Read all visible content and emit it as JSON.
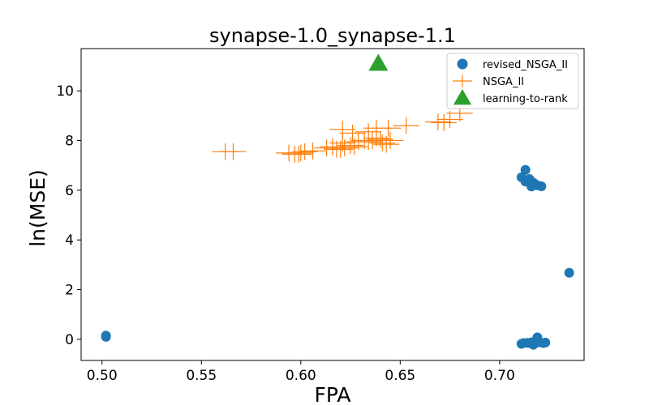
{
  "chart_data": {
    "type": "scatter",
    "title": "synapse-1.0_synapse-1.1",
    "xlabel": "FPA",
    "ylabel": "ln(MSE)",
    "xlim": [
      0.4895,
      0.7425
    ],
    "ylim": [
      -0.85,
      11.7
    ],
    "xticks": [
      "0.50",
      "0.55",
      "0.60",
      "0.65",
      "0.70"
    ],
    "yticks": [
      "0",
      "2",
      "4",
      "6",
      "8",
      "10"
    ],
    "grid": false,
    "legend_position": "top-right",
    "series": [
      {
        "name": "revised_NSGA_II",
        "marker": "circle",
        "color": "#1f77b4",
        "points": [
          [
            0.502,
            0.15
          ],
          [
            0.502,
            0.1
          ],
          [
            0.735,
            2.68
          ],
          [
            0.711,
            6.52
          ],
          [
            0.713,
            6.82
          ],
          [
            0.713,
            6.35
          ],
          [
            0.715,
            6.45
          ],
          [
            0.716,
            6.15
          ],
          [
            0.717,
            6.3
          ],
          [
            0.718,
            6.22
          ],
          [
            0.719,
            6.2
          ],
          [
            0.721,
            6.16
          ],
          [
            0.711,
            -0.18
          ],
          [
            0.712,
            -0.15
          ],
          [
            0.714,
            -0.14
          ],
          [
            0.715,
            -0.15
          ],
          [
            0.716,
            -0.12
          ],
          [
            0.717,
            -0.22
          ],
          [
            0.718,
            -0.1
          ],
          [
            0.719,
            0.08
          ],
          [
            0.72,
            -0.12
          ],
          [
            0.722,
            -0.15
          ],
          [
            0.723,
            -0.13
          ]
        ]
      },
      {
        "name": "NSGA_II",
        "marker": "plus",
        "color": "#ff7f0e",
        "points": [
          [
            0.562,
            7.55
          ],
          [
            0.566,
            7.55
          ],
          [
            0.594,
            7.5
          ],
          [
            0.597,
            7.45
          ],
          [
            0.599,
            7.45
          ],
          [
            0.6,
            7.5
          ],
          [
            0.602,
            7.55
          ],
          [
            0.606,
            7.58
          ],
          [
            0.613,
            7.7
          ],
          [
            0.616,
            7.75
          ],
          [
            0.618,
            7.65
          ],
          [
            0.62,
            7.65
          ],
          [
            0.621,
            7.9
          ],
          [
            0.622,
            7.7
          ],
          [
            0.625,
            7.8
          ],
          [
            0.627,
            7.75
          ],
          [
            0.629,
            7.95
          ],
          [
            0.632,
            8.0
          ],
          [
            0.634,
            7.95
          ],
          [
            0.636,
            8.0
          ],
          [
            0.638,
            8.1
          ],
          [
            0.64,
            8.05
          ],
          [
            0.641,
            7.9
          ],
          [
            0.643,
            7.85
          ],
          [
            0.645,
            8.0
          ],
          [
            0.621,
            8.45
          ],
          [
            0.626,
            8.3
          ],
          [
            0.634,
            8.35
          ],
          [
            0.638,
            8.5
          ],
          [
            0.644,
            8.5
          ],
          [
            0.653,
            8.6
          ],
          [
            0.669,
            8.75
          ],
          [
            0.672,
            8.72
          ],
          [
            0.675,
            8.85
          ],
          [
            0.68,
            9.1
          ]
        ]
      },
      {
        "name": "learning-to-rank",
        "marker": "triangle",
        "color": "#2ca02c",
        "points": [
          [
            0.639,
            11.1
          ]
        ]
      }
    ]
  }
}
